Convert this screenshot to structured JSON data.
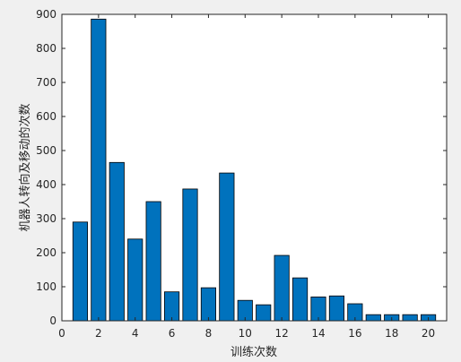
{
  "chart_data": {
    "type": "bar",
    "x": [
      1,
      2,
      3,
      4,
      5,
      6,
      7,
      8,
      9,
      10,
      11,
      12,
      13,
      14,
      15,
      16,
      17,
      18,
      19,
      20
    ],
    "values": [
      290,
      886,
      465,
      240,
      350,
      85,
      387,
      97,
      434,
      60,
      47,
      192,
      126,
      70,
      73,
      50,
      18,
      18,
      18,
      18
    ],
    "title": "",
    "xlabel": "训练次数",
    "ylabel": "机器人转向及移动的次数",
    "xlim": [
      0,
      21
    ],
    "ylim": [
      0,
      900
    ],
    "xticks": [
      0,
      2,
      4,
      6,
      8,
      10,
      12,
      14,
      16,
      18,
      20
    ],
    "yticks": [
      0,
      100,
      200,
      300,
      400,
      500,
      600,
      700,
      800,
      900
    ],
    "grid": false,
    "colors": {
      "bar_fill": "#0072bd",
      "bar_edge": "#000000",
      "axes_bg": "#ffffff",
      "figure_bg": "#f0f0f0"
    }
  }
}
